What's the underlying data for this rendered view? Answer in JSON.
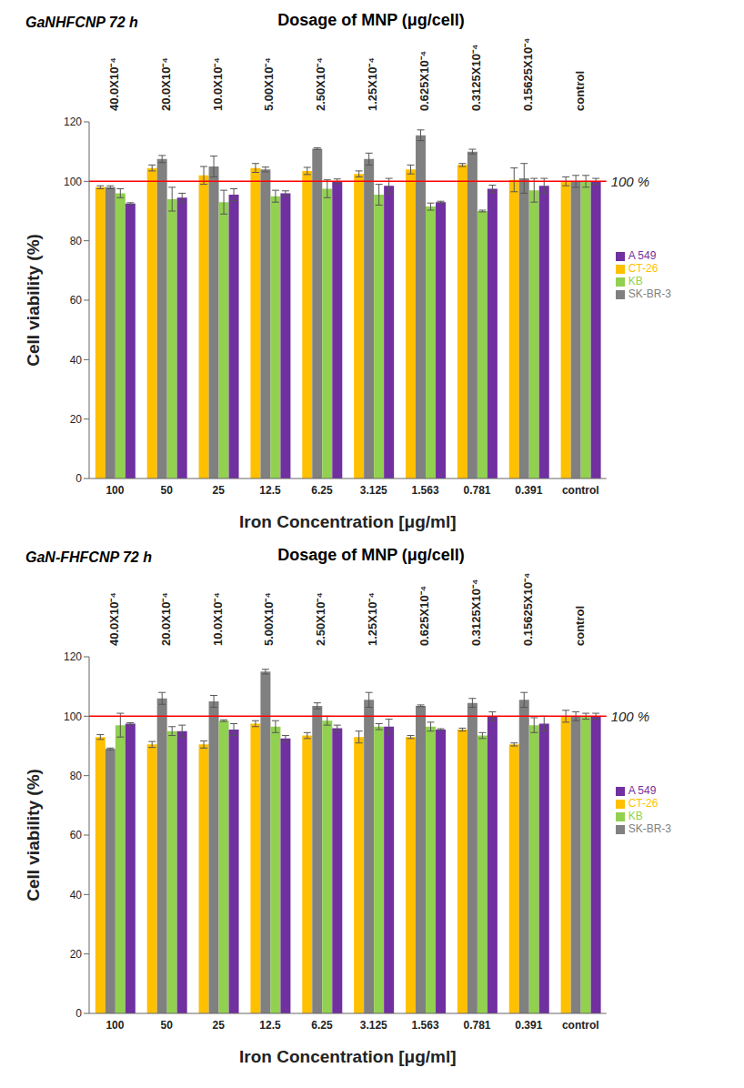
{
  "chart_data": [
    {
      "type": "bar",
      "title": "GaNHFCNP 72 h",
      "x2_label": "Dosage of MNP (μg/cell)",
      "x2_categories": [
        "40.0X10⁻⁴",
        "20.0X10⁻⁴",
        "10.0X10⁻⁴",
        "5.00X10⁻⁴",
        "2.50X10⁻⁴",
        "1.25X10⁻⁴",
        "0.625X10⁻⁴",
        "0.3125X10⁻⁴",
        "0.15625X10⁻⁴",
        "control"
      ],
      "x_label": "Iron Concentration [μg/ml]",
      "y_label": "Cell viability (%)",
      "categories": [
        "100",
        "50",
        "25",
        "12.5",
        "6.25",
        "3.125",
        "1.563",
        "0.781",
        "0.391",
        "control"
      ],
      "series": [
        {
          "name": "CT-26",
          "color": "#ffc000",
          "values": [
            98,
            104.5,
            102,
            104.5,
            103.5,
            102.5,
            104,
            105.5,
            100.5,
            100
          ],
          "errors": [
            0.5,
            1,
            3,
            1.5,
            1.2,
            1,
            1.5,
            0.5,
            4,
            1.5
          ]
        },
        {
          "name": "SK-BR-3",
          "color": "#808080",
          "values": [
            98,
            107.5,
            105,
            104,
            111,
            107.5,
            115.5,
            110,
            101,
            100
          ],
          "errors": [
            0.5,
            1.2,
            3.5,
            0.8,
            0.3,
            2,
            1.8,
            0.8,
            5,
            2
          ]
        },
        {
          "name": "KB",
          "color": "#92d050",
          "values": [
            96,
            94,
            93,
            95,
            97.5,
            95.5,
            91.5,
            90,
            97,
            100
          ],
          "errors": [
            1.5,
            4,
            4,
            2,
            3,
            3.5,
            1.2,
            0.3,
            4,
            2
          ]
        },
        {
          "name": "A 549",
          "color": "#7030a0",
          "values": [
            92.5,
            94.5,
            95.5,
            96,
            100,
            98.5,
            93,
            97.5,
            98.5,
            100
          ],
          "errors": [
            0.3,
            1.5,
            2,
            0.8,
            0.8,
            2.5,
            0.3,
            1.2,
            2.5,
            1
          ]
        }
      ],
      "ylim": [
        0,
        120
      ],
      "yticks": [
        0,
        20,
        40,
        60,
        80,
        100,
        120
      ],
      "grid": false,
      "legend": "right",
      "annotations": [
        {
          "text": "100 %",
          "y": 100,
          "color": "#ff0000"
        }
      ]
    },
    {
      "type": "bar",
      "title": "GaN-FHFCNP 72 h",
      "x2_label": "Dosage of MNP (μg/cell)",
      "x2_categories": [
        "40.0X10⁻⁴",
        "20.0X10⁻⁴",
        "10.0X10⁻⁴",
        "5.00X10⁻⁴",
        "2.50X10⁻⁴",
        "1.25X10⁻⁴",
        "0.625X10⁻⁴",
        "0.3125X10⁻⁴",
        "0.15625X10⁻⁴",
        "control"
      ],
      "x_label": "Iron Concentration [μg/ml]",
      "y_label": "Cell viability (%)",
      "categories": [
        "100",
        "50",
        "25",
        "12.5",
        "6.25",
        "3.125",
        "1.563",
        "0.781",
        "0.391",
        "control"
      ],
      "series": [
        {
          "name": "CT-26",
          "color": "#ffc000",
          "values": [
            93,
            90.5,
            90.5,
            97.5,
            93.5,
            93,
            93,
            95.5,
            90.5,
            100
          ],
          "errors": [
            0.8,
            1,
            1.2,
            1,
            1,
            2,
            0.5,
            0.5,
            0.5,
            2
          ]
        },
        {
          "name": "SK-BR-3",
          "color": "#808080",
          "values": [
            89,
            106,
            105,
            115,
            103.5,
            105.5,
            103.5,
            104.5,
            105.5,
            100
          ],
          "errors": [
            0.3,
            2,
            2,
            0.8,
            1,
            2.5,
            0.3,
            1.5,
            2.5,
            1.5
          ]
        },
        {
          "name": "KB",
          "color": "#92d050",
          "values": [
            97,
            95,
            98.5,
            96.5,
            98.5,
            96.5,
            96.5,
            93.5,
            97,
            100
          ],
          "errors": [
            4,
            1.5,
            0.3,
            2,
            1.5,
            1,
            1.5,
            1,
            2.5,
            1
          ]
        },
        {
          "name": "A 549",
          "color": "#7030a0",
          "values": [
            97.5,
            95,
            95.5,
            92.5,
            96,
            96.5,
            95.5,
            100,
            97.5,
            100
          ],
          "errors": [
            0.3,
            2,
            2,
            1,
            1,
            2.5,
            0.3,
            1.5,
            2.5,
            1
          ]
        }
      ],
      "ylim": [
        0,
        120
      ],
      "yticks": [
        0,
        20,
        40,
        60,
        80,
        100,
        120
      ],
      "grid": false,
      "legend": "right",
      "annotations": [
        {
          "text": "100 %",
          "y": 100,
          "color": "#ff0000"
        }
      ]
    }
  ]
}
